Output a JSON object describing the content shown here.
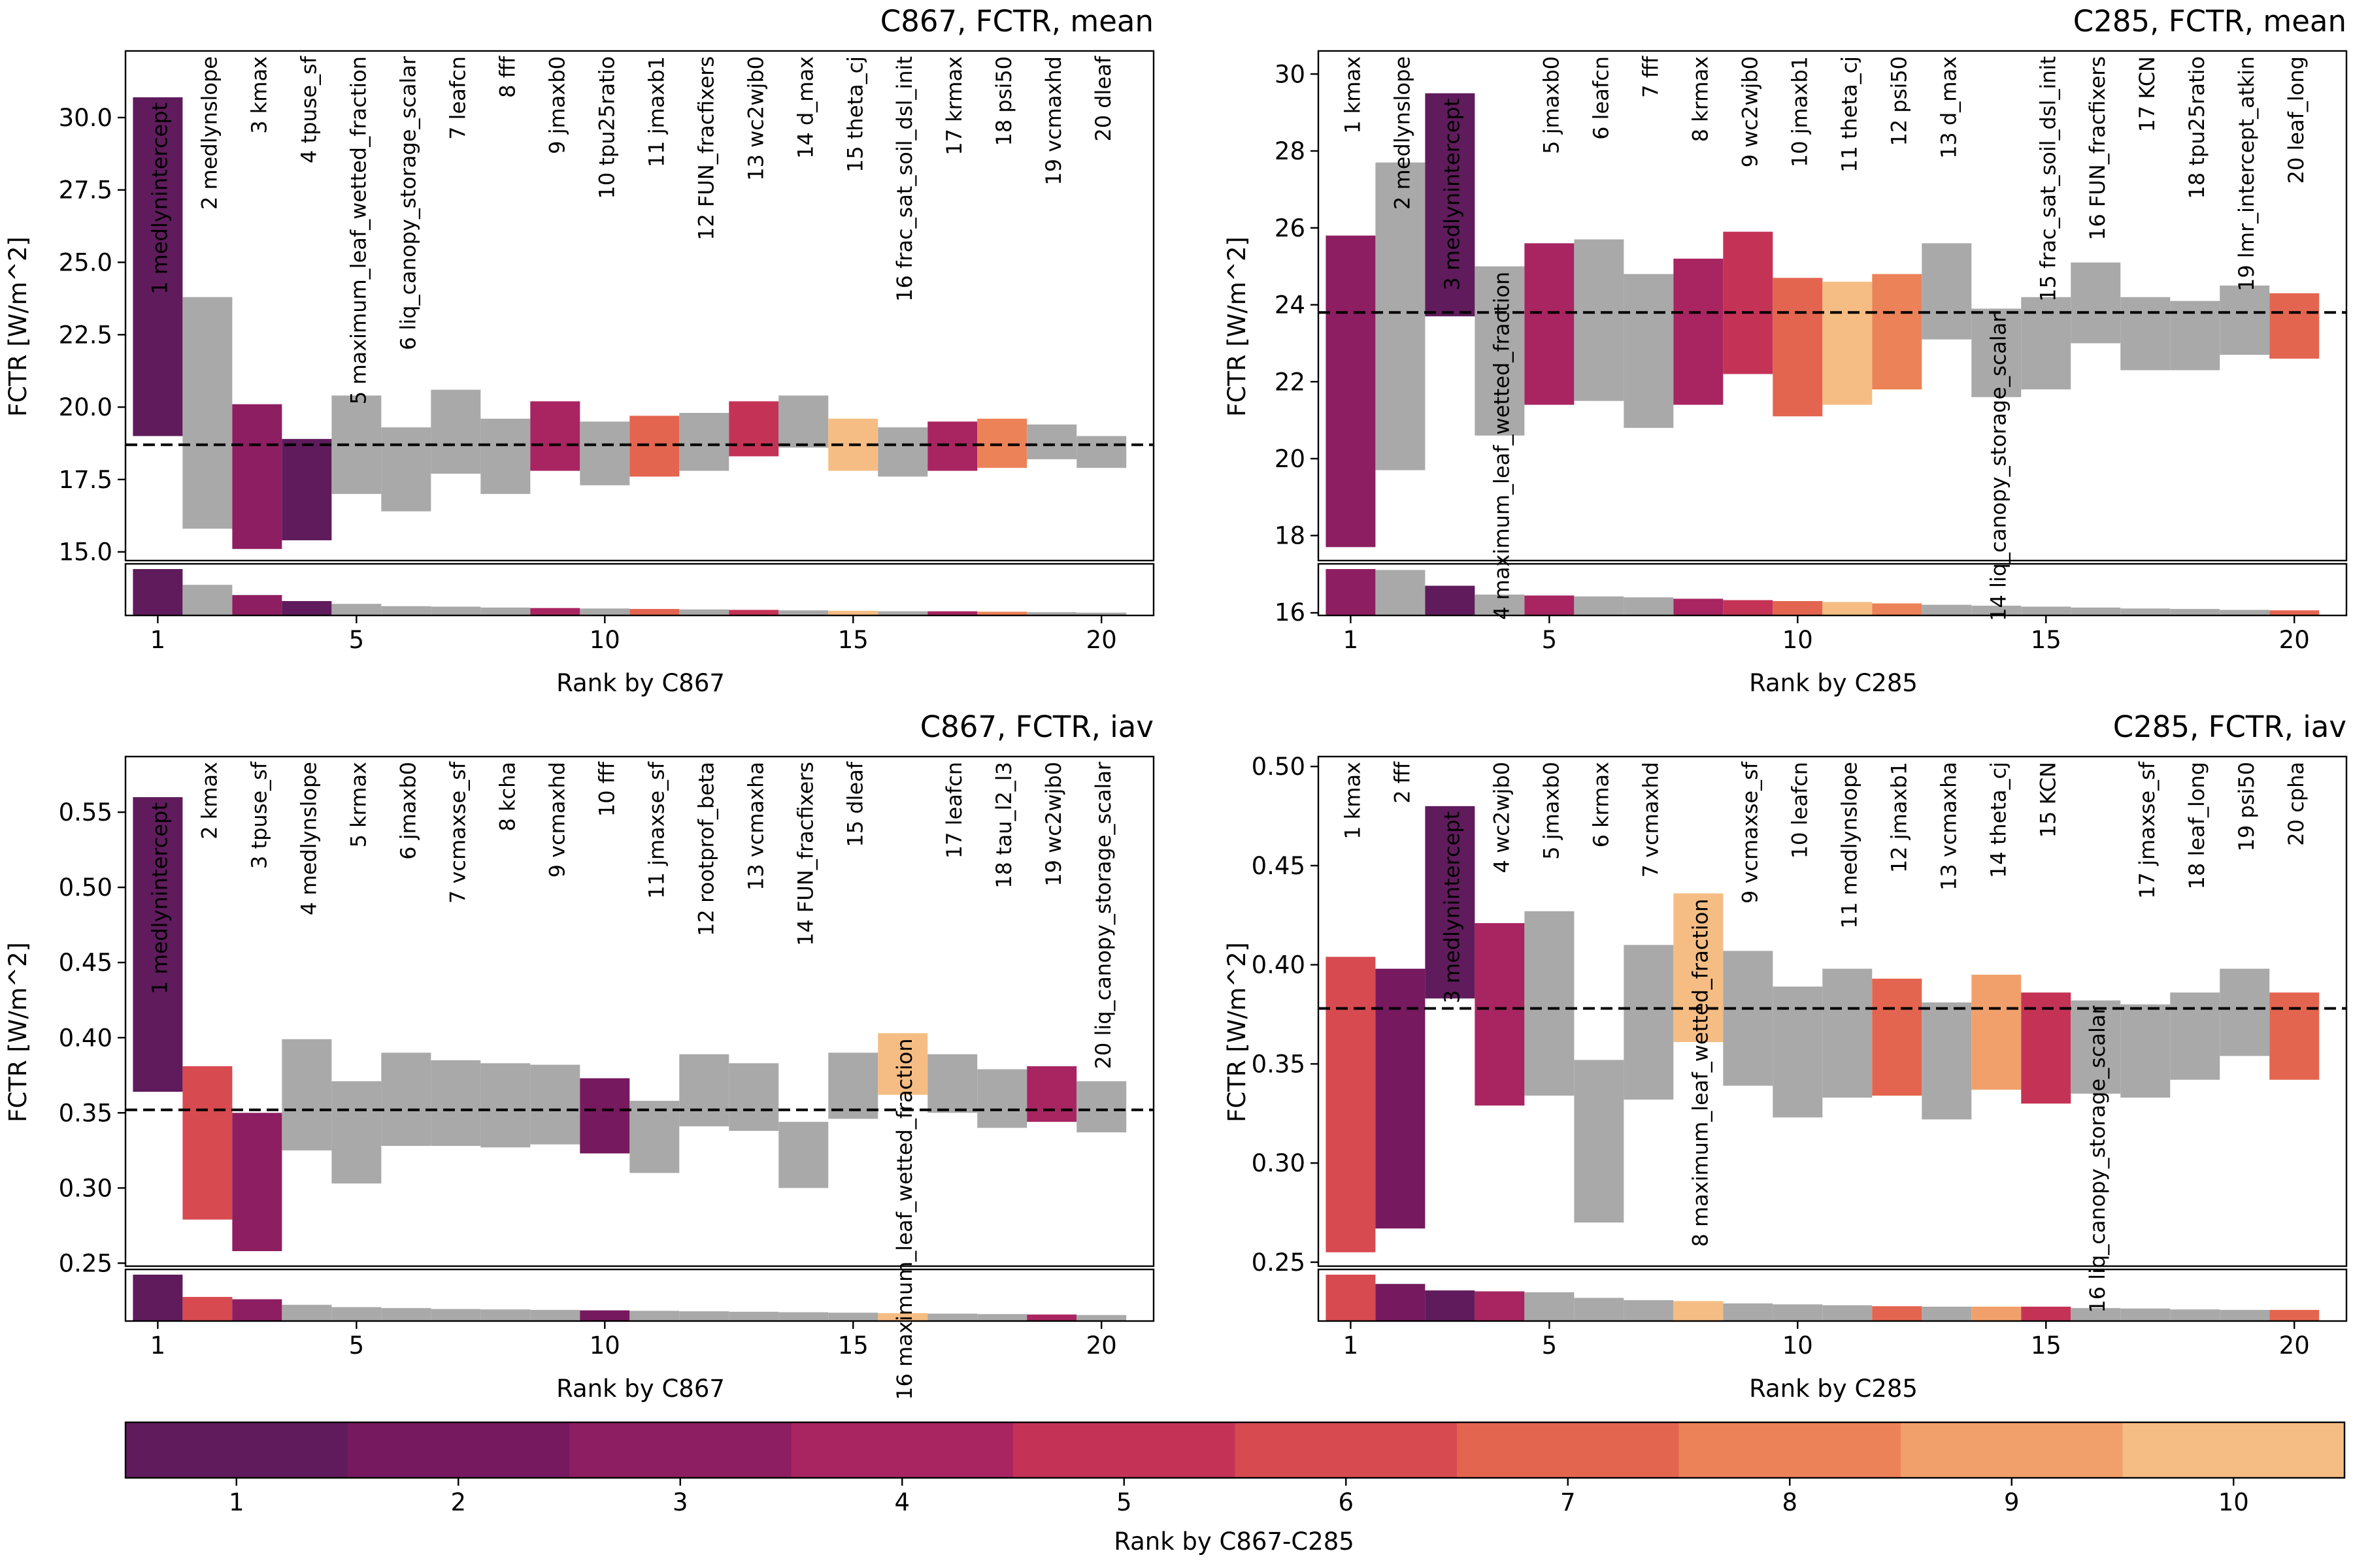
{
  "colors": {
    "gray": "#a9a9a9",
    "scale": [
      "#5f1b5c",
      "#76195f",
      "#8d1e61",
      "#a82561",
      "#c43356",
      "#d74a50",
      "#e4654f",
      "#ec8258",
      "#f1a06c",
      "#f5bd83"
    ]
  },
  "colorbar": {
    "label": "Rank by C867-C285",
    "ticks": [
      "1",
      "2",
      "3",
      "4",
      "5",
      "6",
      "7",
      "8",
      "9",
      "10"
    ]
  },
  "chart_data": [
    {
      "type": "bar",
      "title": "C867, FCTR, mean",
      "xlabel": "Rank by C867",
      "ylabel": "FCTR [W/m^2]",
      "ylim": [
        14.7,
        32.3
      ],
      "yticks": [
        15.0,
        17.5,
        20.0,
        22.5,
        25.0,
        27.5,
        30.0
      ],
      "ytick_labels": [
        "15.0",
        "17.5",
        "20.0",
        "22.5",
        "25.0",
        "27.5",
        "30.0"
      ],
      "xticks": [
        1,
        5,
        10,
        15,
        20
      ],
      "xtick_labels": [
        "1",
        "5",
        "10",
        "15",
        "20"
      ],
      "default_line": 18.7,
      "inset_max": 1,
      "params": [
        {
          "rank": 1,
          "label": "1 medlynintercept",
          "low": 19.0,
          "high": 30.7,
          "color_rank": 1,
          "inset": 1.0,
          "label_top": false
        },
        {
          "rank": 2,
          "label": "2 medlynslope",
          "low": 15.8,
          "high": 23.8,
          "color_rank": null,
          "inset": 0.66,
          "label_top": true
        },
        {
          "rank": 3,
          "label": "3 kmax",
          "low": 15.1,
          "high": 20.1,
          "color_rank": 3,
          "inset": 0.44,
          "label_top": true
        },
        {
          "rank": 4,
          "label": "4 tpuse_sf",
          "low": 15.4,
          "high": 18.9,
          "color_rank": 1,
          "inset": 0.31,
          "label_top": true
        },
        {
          "rank": 5,
          "label": "5 maximum_leaf_wetted_fraction",
          "low": 17.0,
          "high": 20.4,
          "color_rank": null,
          "inset": 0.25,
          "label_top": true
        },
        {
          "rank": 6,
          "label": "6 liq_canopy_storage_scalar",
          "low": 16.4,
          "high": 19.3,
          "color_rank": null,
          "inset": 0.2,
          "label_top": true
        },
        {
          "rank": 7,
          "label": "7 leafcn",
          "low": 17.7,
          "high": 20.6,
          "color_rank": null,
          "inset": 0.19,
          "label_top": true
        },
        {
          "rank": 8,
          "label": "8 fff",
          "low": 17.0,
          "high": 19.6,
          "color_rank": null,
          "inset": 0.17,
          "label_top": true
        },
        {
          "rank": 9,
          "label": "9 jmaxb0",
          "low": 17.8,
          "high": 20.2,
          "color_rank": 4,
          "inset": 0.16,
          "label_top": true
        },
        {
          "rank": 10,
          "label": "10 tpu25ratio",
          "low": 17.3,
          "high": 19.5,
          "color_rank": null,
          "inset": 0.15,
          "label_top": true
        },
        {
          "rank": 11,
          "label": "11 jmaxb1",
          "low": 17.6,
          "high": 19.7,
          "color_rank": 7,
          "inset": 0.14,
          "label_top": true
        },
        {
          "rank": 12,
          "label": "12 FUN_fracfixers",
          "low": 17.8,
          "high": 19.8,
          "color_rank": null,
          "inset": 0.13,
          "label_top": true
        },
        {
          "rank": 13,
          "label": "13 wc2wjb0",
          "low": 18.3,
          "high": 20.2,
          "color_rank": 5,
          "inset": 0.12,
          "label_top": true
        },
        {
          "rank": 14,
          "label": "14 d_max",
          "low": 18.6,
          "high": 20.4,
          "color_rank": null,
          "inset": 0.11,
          "label_top": true
        },
        {
          "rank": 15,
          "label": "15 theta_cj",
          "low": 17.8,
          "high": 19.6,
          "color_rank": 10,
          "inset": 0.1,
          "label_top": true
        },
        {
          "rank": 16,
          "label": "16 frac_sat_soil_dsl_init",
          "low": 17.6,
          "high": 19.3,
          "color_rank": null,
          "inset": 0.09,
          "label_top": true
        },
        {
          "rank": 17,
          "label": "17 krmax",
          "low": 17.8,
          "high": 19.5,
          "color_rank": 4,
          "inset": 0.09,
          "label_top": true
        },
        {
          "rank": 18,
          "label": "18 psi50",
          "low": 17.9,
          "high": 19.6,
          "color_rank": 8,
          "inset": 0.08,
          "label_top": true
        },
        {
          "rank": 19,
          "label": "19 vcmaxhd",
          "low": 18.2,
          "high": 19.4,
          "color_rank": null,
          "inset": 0.07,
          "label_top": true
        },
        {
          "rank": 20,
          "label": "20 dleaf",
          "low": 17.9,
          "high": 19.0,
          "color_rank": null,
          "inset": 0.06,
          "label_top": true
        }
      ]
    },
    {
      "type": "bar",
      "title": "C285, FCTR, mean",
      "xlabel": "Rank by C285",
      "ylabel": "FCTR [W/m^2]",
      "ylim": [
        17.35,
        30.6
      ],
      "yticks": [
        16,
        18,
        20,
        22,
        24,
        26,
        28,
        30
      ],
      "ytick_labels": [
        "16",
        "18",
        "20",
        "22",
        "24",
        "26",
        "28",
        "30"
      ],
      "xticks": [
        1,
        5,
        10,
        15,
        20
      ],
      "xtick_labels": [
        "1",
        "5",
        "10",
        "15",
        "20"
      ],
      "default_line": 23.8,
      "inset_max": 1,
      "params": [
        {
          "rank": 1,
          "label": "1 kmax",
          "low": 17.7,
          "high": 25.8,
          "color_rank": 3,
          "inset": 1.0,
          "label_top": true
        },
        {
          "rank": 2,
          "label": "2 medlynslope",
          "low": 19.7,
          "high": 27.7,
          "color_rank": null,
          "inset": 0.98,
          "label_top": true
        },
        {
          "rank": 3,
          "label": "3 medlynintercept",
          "low": 23.7,
          "high": 29.5,
          "color_rank": 1,
          "inset": 0.64,
          "label_top": false
        },
        {
          "rank": 4,
          "label": "4 maximum_leaf_wetted_fraction",
          "low": 20.6,
          "high": 25.0,
          "color_rank": null,
          "inset": 0.45,
          "label_top": false
        },
        {
          "rank": 5,
          "label": "5 jmaxb0",
          "low": 21.4,
          "high": 25.6,
          "color_rank": 4,
          "inset": 0.43,
          "label_top": true
        },
        {
          "rank": 6,
          "label": "6 leafcn",
          "low": 21.5,
          "high": 25.7,
          "color_rank": null,
          "inset": 0.41,
          "label_top": true
        },
        {
          "rank": 7,
          "label": "7 fff",
          "low": 20.8,
          "high": 24.8,
          "color_rank": null,
          "inset": 0.39,
          "label_top": true
        },
        {
          "rank": 8,
          "label": "8 krmax",
          "low": 21.4,
          "high": 25.2,
          "color_rank": 4,
          "inset": 0.36,
          "label_top": true
        },
        {
          "rank": 9,
          "label": "9 wc2wjb0",
          "low": 22.2,
          "high": 25.9,
          "color_rank": 5,
          "inset": 0.33,
          "label_top": true
        },
        {
          "rank": 10,
          "label": "10 jmaxb1",
          "low": 21.1,
          "high": 24.7,
          "color_rank": 7,
          "inset": 0.31,
          "label_top": true
        },
        {
          "rank": 11,
          "label": "11 theta_cj",
          "low": 21.4,
          "high": 24.6,
          "color_rank": 10,
          "inset": 0.29,
          "label_top": true
        },
        {
          "rank": 12,
          "label": "12 psi50",
          "low": 21.8,
          "high": 24.8,
          "color_rank": 8,
          "inset": 0.26,
          "label_top": true
        },
        {
          "rank": 13,
          "label": "13 d_max",
          "low": 23.1,
          "high": 25.6,
          "color_rank": null,
          "inset": 0.23,
          "label_top": true
        },
        {
          "rank": 14,
          "label": "14 liq_canopy_storage_scalar",
          "low": 21.6,
          "high": 23.9,
          "color_rank": null,
          "inset": 0.21,
          "label_top": false
        },
        {
          "rank": 15,
          "label": "15 frac_sat_soil_dsl_init",
          "low": 21.8,
          "high": 24.2,
          "color_rank": null,
          "inset": 0.19,
          "label_top": true
        },
        {
          "rank": 16,
          "label": "16 FUN_fracfixers",
          "low": 23.0,
          "high": 25.1,
          "color_rank": null,
          "inset": 0.17,
          "label_top": true
        },
        {
          "rank": 17,
          "label": "17 KCN",
          "low": 22.3,
          "high": 24.2,
          "color_rank": null,
          "inset": 0.15,
          "label_top": true
        },
        {
          "rank": 18,
          "label": "18 tpu25ratio",
          "low": 22.3,
          "high": 24.1,
          "color_rank": null,
          "inset": 0.14,
          "label_top": true
        },
        {
          "rank": 19,
          "label": "19 lmr_intercept_atkin",
          "low": 22.7,
          "high": 24.5,
          "color_rank": null,
          "inset": 0.12,
          "label_top": true
        },
        {
          "rank": 20,
          "label": "20 leaf_long",
          "low": 22.6,
          "high": 24.3,
          "color_rank": 7,
          "inset": 0.11,
          "label_top": true
        }
      ]
    },
    {
      "type": "bar",
      "title": "C867, FCTR, iav",
      "xlabel": "Rank by C867",
      "ylabel": "FCTR [W/m^2]",
      "ylim": [
        0.248,
        0.587
      ],
      "yticks": [
        0.25,
        0.3,
        0.35,
        0.4,
        0.45,
        0.5,
        0.55
      ],
      "ytick_labels": [
        "0.25",
        "0.30",
        "0.35",
        "0.40",
        "0.45",
        "0.50",
        "0.55"
      ],
      "xticks": [
        1,
        5,
        10,
        15,
        20
      ],
      "xtick_labels": [
        "1",
        "5",
        "10",
        "15",
        "20"
      ],
      "default_line": 0.352,
      "inset_max": 1,
      "params": [
        {
          "rank": 1,
          "label": "1 medlynintercept",
          "low": 0.364,
          "high": 0.56,
          "color_rank": 1,
          "inset": 1.0,
          "label_top": false
        },
        {
          "rank": 2,
          "label": "2 kmax",
          "low": 0.279,
          "high": 0.381,
          "color_rank": 6,
          "inset": 0.52,
          "label_top": true
        },
        {
          "rank": 3,
          "label": "3 tpuse_sf",
          "low": 0.258,
          "high": 0.35,
          "color_rank": 3,
          "inset": 0.47,
          "label_top": true
        },
        {
          "rank": 4,
          "label": "4 medlynslope",
          "low": 0.325,
          "high": 0.399,
          "color_rank": null,
          "inset": 0.35,
          "label_top": true
        },
        {
          "rank": 5,
          "label": "5 krmax",
          "low": 0.303,
          "high": 0.371,
          "color_rank": null,
          "inset": 0.3,
          "label_top": true
        },
        {
          "rank": 6,
          "label": "6 jmaxb0",
          "low": 0.328,
          "high": 0.39,
          "color_rank": null,
          "inset": 0.28,
          "label_top": true
        },
        {
          "rank": 7,
          "label": "7 vcmaxse_sf",
          "low": 0.328,
          "high": 0.385,
          "color_rank": null,
          "inset": 0.26,
          "label_top": true
        },
        {
          "rank": 8,
          "label": "8 kcha",
          "low": 0.327,
          "high": 0.383,
          "color_rank": null,
          "inset": 0.25,
          "label_top": true
        },
        {
          "rank": 9,
          "label": "9 vcmaxhd",
          "low": 0.329,
          "high": 0.382,
          "color_rank": null,
          "inset": 0.24,
          "label_top": true
        },
        {
          "rank": 10,
          "label": "10 fff",
          "low": 0.323,
          "high": 0.373,
          "color_rank": 2,
          "inset": 0.23,
          "label_top": true
        },
        {
          "rank": 11,
          "label": "11 jmaxse_sf",
          "low": 0.31,
          "high": 0.358,
          "color_rank": null,
          "inset": 0.22,
          "label_top": true
        },
        {
          "rank": 12,
          "label": "12 rootprof_beta",
          "low": 0.341,
          "high": 0.389,
          "color_rank": null,
          "inset": 0.21,
          "label_top": true
        },
        {
          "rank": 13,
          "label": "13 vcmaxha",
          "low": 0.338,
          "high": 0.383,
          "color_rank": null,
          "inset": 0.2,
          "label_top": true
        },
        {
          "rank": 14,
          "label": "14 FUN_fracfixers",
          "low": 0.3,
          "high": 0.344,
          "color_rank": null,
          "inset": 0.19,
          "label_top": true
        },
        {
          "rank": 15,
          "label": "15 dleaf",
          "low": 0.346,
          "high": 0.39,
          "color_rank": null,
          "inset": 0.18,
          "label_top": true
        },
        {
          "rank": 16,
          "label": "16 maximum_leaf_wetted_fraction",
          "low": 0.362,
          "high": 0.403,
          "color_rank": 10,
          "inset": 0.17,
          "label_top": false
        },
        {
          "rank": 17,
          "label": "17 leafcn",
          "low": 0.35,
          "high": 0.389,
          "color_rank": null,
          "inset": 0.16,
          "label_top": true
        },
        {
          "rank": 18,
          "label": "18 tau_l2_l3",
          "low": 0.34,
          "high": 0.379,
          "color_rank": null,
          "inset": 0.15,
          "label_top": true
        },
        {
          "rank": 19,
          "label": "19 wc2wjb0",
          "low": 0.344,
          "high": 0.381,
          "color_rank": 4,
          "inset": 0.14,
          "label_top": true
        },
        {
          "rank": 20,
          "label": "20 liq_canopy_storage_scalar",
          "low": 0.337,
          "high": 0.371,
          "color_rank": null,
          "inset": 0.13,
          "label_top": true
        }
      ]
    },
    {
      "type": "bar",
      "title": "C285, FCTR, iav",
      "xlabel": "Rank by C285",
      "ylabel": "FCTR [W/m^2]",
      "ylim": [
        0.248,
        0.505
      ],
      "yticks": [
        0.25,
        0.3,
        0.35,
        0.4,
        0.45,
        0.5
      ],
      "ytick_labels": [
        "0.25",
        "0.30",
        "0.35",
        "0.40",
        "0.45",
        "0.50"
      ],
      "xticks": [
        1,
        5,
        10,
        15,
        20
      ],
      "xtick_labels": [
        "1",
        "5",
        "10",
        "15",
        "20"
      ],
      "default_line": 0.378,
      "inset_max": 1,
      "params": [
        {
          "rank": 1,
          "label": "1 kmax",
          "low": 0.255,
          "high": 0.404,
          "color_rank": 6,
          "inset": 1.0,
          "label_top": true
        },
        {
          "rank": 2,
          "label": "2 fff",
          "low": 0.267,
          "high": 0.398,
          "color_rank": 2,
          "inset": 0.8,
          "label_top": true
        },
        {
          "rank": 3,
          "label": "3 medlynintercept",
          "low": 0.383,
          "high": 0.48,
          "color_rank": 1,
          "inset": 0.66,
          "label_top": false
        },
        {
          "rank": 4,
          "label": "4 wc2wjb0",
          "low": 0.329,
          "high": 0.421,
          "color_rank": 4,
          "inset": 0.64,
          "label_top": true
        },
        {
          "rank": 5,
          "label": "5 jmaxb0",
          "low": 0.334,
          "high": 0.427,
          "color_rank": null,
          "inset": 0.62,
          "label_top": true
        },
        {
          "rank": 6,
          "label": "6 krmax",
          "low": 0.27,
          "high": 0.352,
          "color_rank": null,
          "inset": 0.5,
          "label_top": true
        },
        {
          "rank": 7,
          "label": "7 vcmaxhd",
          "low": 0.332,
          "high": 0.41,
          "color_rank": null,
          "inset": 0.45,
          "label_top": true
        },
        {
          "rank": 8,
          "label": "8 maximum_leaf_wetted_fraction",
          "low": 0.361,
          "high": 0.436,
          "color_rank": 10,
          "inset": 0.43,
          "label_top": false
        },
        {
          "rank": 9,
          "label": "9 vcmaxse_sf",
          "low": 0.339,
          "high": 0.407,
          "color_rank": null,
          "inset": 0.38,
          "label_top": true
        },
        {
          "rank": 10,
          "label": "10 leafcn",
          "low": 0.323,
          "high": 0.389,
          "color_rank": null,
          "inset": 0.36,
          "label_top": true
        },
        {
          "rank": 11,
          "label": "11 medlynslope",
          "low": 0.333,
          "high": 0.398,
          "color_rank": null,
          "inset": 0.34,
          "label_top": true
        },
        {
          "rank": 12,
          "label": "12 jmaxb1",
          "low": 0.334,
          "high": 0.393,
          "color_rank": 7,
          "inset": 0.32,
          "label_top": true
        },
        {
          "rank": 13,
          "label": "13 vcmaxha",
          "low": 0.322,
          "high": 0.381,
          "color_rank": null,
          "inset": 0.31,
          "label_top": true
        },
        {
          "rank": 14,
          "label": "14 theta_cj",
          "low": 0.337,
          "high": 0.395,
          "color_rank": 9,
          "inset": 0.31,
          "label_top": true
        },
        {
          "rank": 15,
          "label": "15 KCN",
          "low": 0.33,
          "high": 0.386,
          "color_rank": 5,
          "inset": 0.31,
          "label_top": true
        },
        {
          "rank": 16,
          "label": "16 liq_canopy_storage_scalar",
          "low": 0.335,
          "high": 0.382,
          "color_rank": null,
          "inset": 0.28,
          "label_top": false
        },
        {
          "rank": 17,
          "label": "17 jmaxse_sf",
          "low": 0.333,
          "high": 0.38,
          "color_rank": null,
          "inset": 0.27,
          "label_top": true
        },
        {
          "rank": 18,
          "label": "18 leaf_long",
          "low": 0.342,
          "high": 0.386,
          "color_rank": null,
          "inset": 0.25,
          "label_top": true
        },
        {
          "rank": 19,
          "label": "19 psi50",
          "low": 0.354,
          "high": 0.398,
          "color_rank": null,
          "inset": 0.24,
          "label_top": true
        },
        {
          "rank": 20,
          "label": "20 cpha",
          "low": 0.342,
          "high": 0.386,
          "color_rank": 7,
          "inset": 0.24,
          "label_top": true
        }
      ]
    }
  ]
}
